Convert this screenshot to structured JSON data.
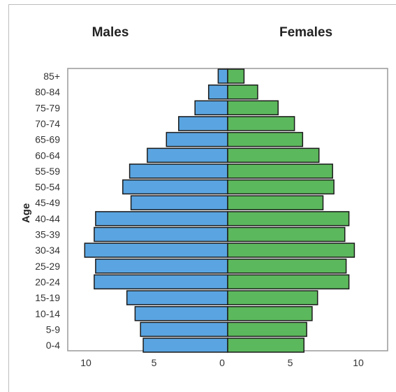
{
  "chart_data": {
    "type": "bar",
    "orientation": "horizontal",
    "layout": "population-pyramid",
    "ylabel": "Age",
    "categories": [
      "85+",
      "80-84",
      "75-79",
      "70-74",
      "65-69",
      "60-64",
      "55-59",
      "50-54",
      "45-49",
      "40-44",
      "35-39",
      "30-34",
      "25-29",
      "20-24",
      "15-19",
      "10-14",
      "5-9",
      "0-4"
    ],
    "series": [
      {
        "name": "Males",
        "side": "left",
        "color": "#5aa5e1",
        "values": [
          0.7,
          1.4,
          2.4,
          3.6,
          4.5,
          5.9,
          7.2,
          7.7,
          7.1,
          9.7,
          9.8,
          10.5,
          9.7,
          9.8,
          7.4,
          6.8,
          6.4,
          6.2
        ]
      },
      {
        "name": "Females",
        "side": "right",
        "color": "#5cb85c",
        "values": [
          1.2,
          2.2,
          3.7,
          4.9,
          5.5,
          6.7,
          7.7,
          7.8,
          7.0,
          8.9,
          8.6,
          9.3,
          8.7,
          8.9,
          6.6,
          6.2,
          5.8,
          5.6
        ]
      }
    ],
    "xlim": [
      0,
      10.7
    ],
    "x_ticks": [
      "10",
      "5",
      "0",
      "5",
      "10"
    ],
    "grid": false,
    "legend": "none"
  }
}
